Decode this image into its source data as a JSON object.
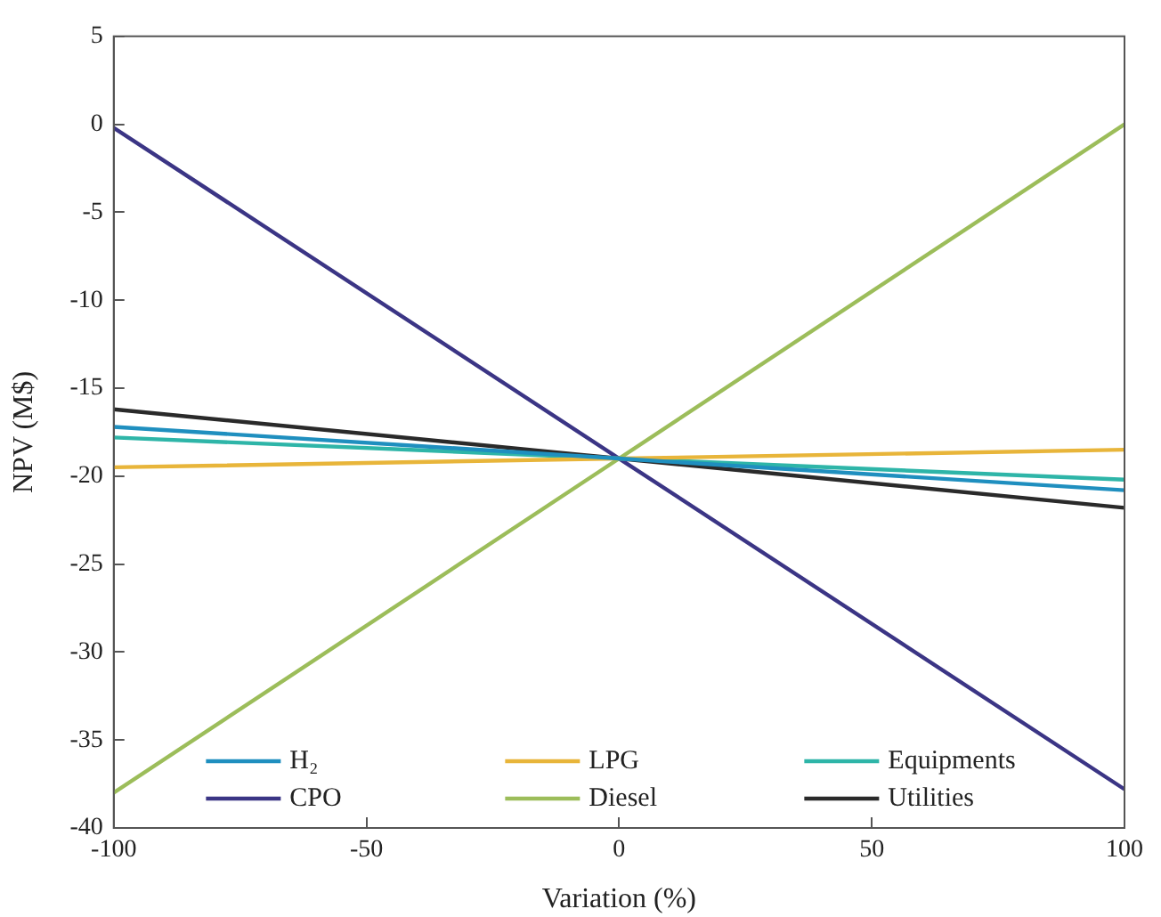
{
  "chart_data": {
    "type": "line",
    "xlabel": "Variation (%)",
    "ylabel": "NPV (M$)",
    "x": [
      -100,
      0,
      100
    ],
    "xlim": [
      -100,
      100
    ],
    "xticks": [
      -100,
      -50,
      0,
      50,
      100
    ],
    "ylim": [
      -40,
      5
    ],
    "yticks": [
      -40,
      -35,
      -30,
      -25,
      -20,
      -15,
      -10,
      -5,
      0,
      5
    ],
    "grid": false,
    "legend": "bottom",
    "marker": "none",
    "line_style": "solid",
    "series": [
      {
        "name": "H₂",
        "color": "#1f8fbf",
        "values": [
          -17.2,
          -19,
          -20.8
        ]
      },
      {
        "name": "LPG",
        "color": "#e8b53a",
        "values": [
          -19.5,
          -19,
          -18.5
        ]
      },
      {
        "name": "Equipments",
        "color": "#2eb5a8",
        "values": [
          -17.8,
          -19,
          -20.2
        ]
      },
      {
        "name": "CPO",
        "color": "#3b3585",
        "values": [
          -0.2,
          -19,
          -37.8
        ]
      },
      {
        "name": "Diesel",
        "color": "#9cbd5a",
        "values": [
          -38,
          -19,
          0
        ]
      },
      {
        "name": "Utilities",
        "color": "#2a2a2a",
        "values": [
          -16.2,
          -19,
          -21.8
        ]
      }
    ]
  }
}
